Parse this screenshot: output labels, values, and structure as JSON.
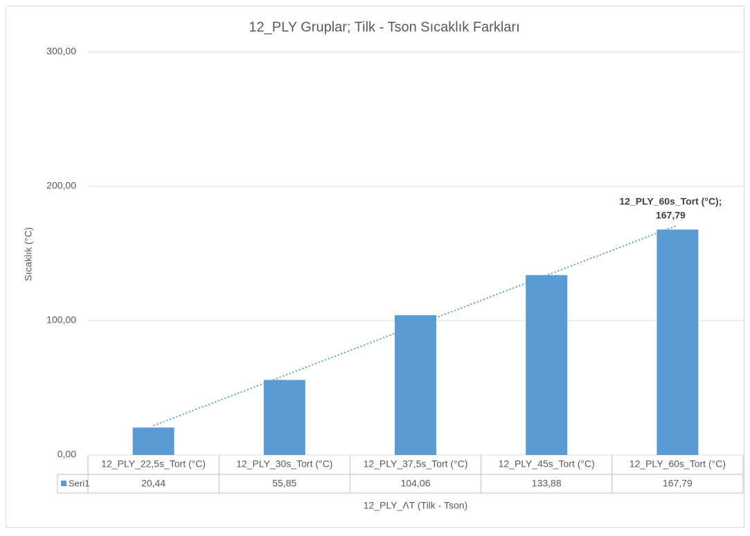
{
  "chart_data": {
    "type": "bar",
    "title": "12_PLY Gruplar; Tilk - Tson Sıcaklık Farkları",
    "x_label": "12_PLY_ΛT (Tilk - Tson)",
    "y_label": "Sıcaklık (°C)",
    "categories": [
      "12_PLY_22,5s_Tort (°C)",
      "12_PLY_30s_Tort (°C)",
      "12_PLY_37,5s_Tort (°C)",
      "12_PLY_45s_Tort (°C)",
      "12_PLY_60s_Tort (°C)"
    ],
    "series": [
      {
        "name": "Seri1",
        "color": "#5b9bd5",
        "values": [
          20.44,
          55.85,
          104.06,
          133.88,
          167.79
        ],
        "value_labels": [
          "20,44",
          "55,85",
          "104,06",
          "133,88",
          "167,79"
        ]
      }
    ],
    "ylim": [
      0,
      300
    ],
    "yticks": [
      {
        "value": 0,
        "label": "0,00"
      },
      {
        "value": 100,
        "label": "100,00"
      },
      {
        "value": 200,
        "label": "200,00"
      },
      {
        "value": 300,
        "label": "300,00"
      }
    ],
    "grid": true,
    "trendline": "linear",
    "data_label_lines": [
      "12_PLY_60s_Tort (°C);",
      "167,79"
    ],
    "data_table": true
  }
}
